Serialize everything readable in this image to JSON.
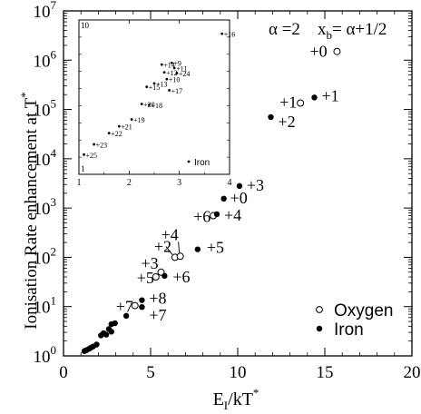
{
  "chart_data": [
    {
      "type": "scatter",
      "ylabel": "Ionisation Rate enhancement at T",
      "ylabel_sup": "*",
      "xlabel_main": "E",
      "xlabel_sub": "I",
      "xlabel_rest": "/kT",
      "xlabel_sup": "*",
      "xlim": [
        0,
        20
      ],
      "ylim_log10": [
        0,
        7
      ],
      "y_log_scale": true,
      "xticks": [
        "0",
        "5",
        "10",
        "15",
        "20"
      ],
      "yticks": [
        {
          "base": "10",
          "exp": "0"
        },
        {
          "base": "10",
          "exp": "1"
        },
        {
          "base": "10",
          "exp": "2"
        },
        {
          "base": "10",
          "exp": "3"
        },
        {
          "base": "10",
          "exp": "4"
        },
        {
          "base": "10",
          "exp": "5"
        },
        {
          "base": "10",
          "exp": "6"
        },
        {
          "base": "10",
          "exp": "7"
        }
      ],
      "annotation": {
        "alpha": "α =2",
        "xb_main": "x",
        "xb_sub": "b",
        "xb_rest": "= α+1/2"
      },
      "legend_position": "bottom-right",
      "series": [
        {
          "name": "Oxygen",
          "marker": "open-circle",
          "points": [
            {
              "x": 15.7,
              "y": 1500000,
              "label": "+0"
            },
            {
              "x": 13.6,
              "y": 135000,
              "label": "+1"
            },
            {
              "x": 6.4,
              "y": 100,
              "label": "+2"
            },
            {
              "x": 6.7,
              "y": 105,
              "label": "+4"
            },
            {
              "x": 5.6,
              "y": 50,
              "label": "+3"
            },
            {
              "x": 5.3,
              "y": 40,
              "label": "+5"
            },
            {
              "x": 4.1,
              "y": 10.5,
              "label": "+7"
            },
            {
              "x": 8.6,
              "y": 700,
              "label": "+6"
            }
          ]
        },
        {
          "name": "Iron",
          "marker": "filled-circle",
          "points": [
            {
              "x": 14.4,
              "y": 175000,
              "label": "+1"
            },
            {
              "x": 11.9,
              "y": 70000,
              "label": "+2"
            },
            {
              "x": 10.1,
              "y": 2800,
              "label": "+3"
            },
            {
              "x": 9.2,
              "y": 1550,
              "label": "+0"
            },
            {
              "x": 8.8,
              "y": 750,
              "label": "+4"
            },
            {
              "x": 7.7,
              "y": 145,
              "label": "+5"
            },
            {
              "x": 5.8,
              "y": 42,
              "label": "+6"
            },
            {
              "x": 4.5,
              "y": 13.5,
              "label": "+8"
            },
            {
              "x": 4.5,
              "y": 9.8,
              "label": "+7"
            },
            {
              "x": 3.6,
              "y": 6.5,
              "label": ""
            },
            {
              "x": 2.95,
              "y": 4.6,
              "label": ""
            },
            {
              "x": 2.75,
              "y": 4.4,
              "label": ""
            },
            {
              "x": 2.6,
              "y": 3.5,
              "label": ""
            },
            {
              "x": 2.75,
              "y": 3.1,
              "label": ""
            },
            {
              "x": 2.45,
              "y": 2.7,
              "label": ""
            },
            {
              "x": 2.3,
              "y": 2.9,
              "label": ""
            },
            {
              "x": 2.15,
              "y": 2.6,
              "label": ""
            },
            {
              "x": 1.9,
              "y": 1.7,
              "label": ""
            },
            {
              "x": 1.7,
              "y": 1.55,
              "label": ""
            },
            {
              "x": 1.55,
              "y": 1.45,
              "label": ""
            },
            {
              "x": 1.45,
              "y": 1.38,
              "label": ""
            },
            {
              "x": 1.3,
              "y": 1.3,
              "label": ""
            },
            {
              "x": 1.2,
              "y": 1.25,
              "label": ""
            }
          ]
        }
      ]
    },
    {
      "type": "scatter",
      "inset": true,
      "xlim": [
        1,
        4
      ],
      "ylim": [
        1,
        10
      ],
      "xticks": [
        "1",
        "2",
        "3",
        "4"
      ],
      "yticks": [
        "1",
        "10"
      ],
      "series": [
        {
          "name": "Iron",
          "marker": "filled-circle",
          "points": [
            {
              "x": 3.85,
              "y": 9.2,
              "label": "+16"
            },
            {
              "x": 2.85,
              "y": 7.5,
              "label": "+9"
            },
            {
              "x": 2.65,
              "y": 7.4,
              "label": "+14"
            },
            {
              "x": 2.9,
              "y": 7.2,
              "label": "+11"
            },
            {
              "x": 2.7,
              "y": 6.95,
              "label": "+12"
            },
            {
              "x": 2.95,
              "y": 6.9,
              "label": "+24"
            },
            {
              "x": 2.75,
              "y": 6.55,
              "label": "+10"
            },
            {
              "x": 2.5,
              "y": 6.3,
              "label": "+13"
            },
            {
              "x": 2.35,
              "y": 6.1,
              "label": "+15"
            },
            {
              "x": 2.8,
              "y": 5.9,
              "label": "+17"
            },
            {
              "x": 2.25,
              "y": 5.1,
              "label": "+20"
            },
            {
              "x": 2.4,
              "y": 5.05,
              "label": "+18"
            },
            {
              "x": 2.05,
              "y": 4.2,
              "label": "+19"
            },
            {
              "x": 1.8,
              "y": 3.8,
              "label": "+21"
            },
            {
              "x": 1.6,
              "y": 3.4,
              "label": "+22"
            },
            {
              "x": 1.3,
              "y": 2.75,
              "label": "+23"
            },
            {
              "x": 1.1,
              "y": 2.15,
              "label": "+25"
            }
          ]
        }
      ],
      "legend_text": "Iron"
    }
  ]
}
